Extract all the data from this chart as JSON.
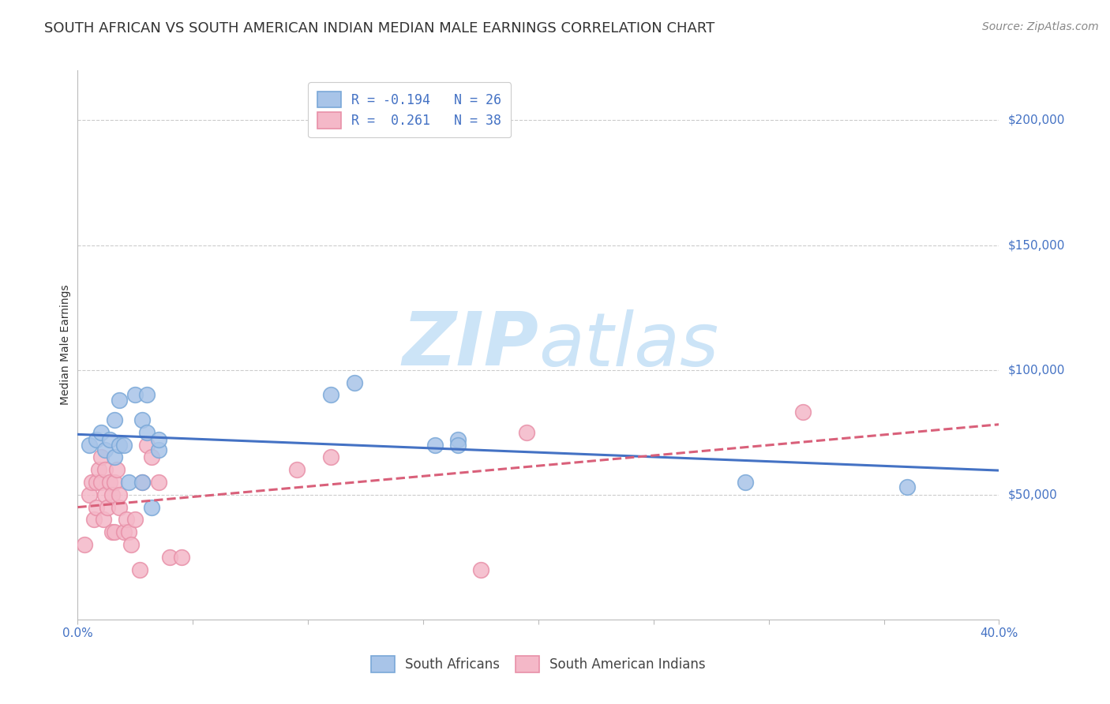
{
  "title": "SOUTH AFRICAN VS SOUTH AMERICAN INDIAN MEDIAN MALE EARNINGS CORRELATION CHART",
  "source": "Source: ZipAtlas.com",
  "ylabel": "Median Male Earnings",
  "ytick_labels": [
    "$50,000",
    "$100,000",
    "$150,000",
    "$200,000"
  ],
  "ytick_values": [
    50000,
    100000,
    150000,
    200000
  ],
  "ymin": 0,
  "ymax": 220000,
  "xmin": 0.0,
  "xmax": 0.4,
  "blue_label": "South Africans",
  "pink_label": "South American Indians",
  "blue_R": -0.194,
  "blue_N": 26,
  "pink_R": 0.261,
  "pink_N": 38,
  "blue_scatter_x": [
    0.005,
    0.008,
    0.01,
    0.012,
    0.014,
    0.016,
    0.016,
    0.018,
    0.018,
    0.02,
    0.022,
    0.025,
    0.028,
    0.028,
    0.03,
    0.03,
    0.032,
    0.035,
    0.035,
    0.11,
    0.12,
    0.155,
    0.165,
    0.165,
    0.29,
    0.36
  ],
  "blue_scatter_y": [
    70000,
    72000,
    75000,
    68000,
    72000,
    80000,
    65000,
    88000,
    70000,
    70000,
    55000,
    90000,
    80000,
    55000,
    90000,
    75000,
    45000,
    68000,
    72000,
    90000,
    95000,
    70000,
    72000,
    70000,
    55000,
    53000
  ],
  "pink_scatter_x": [
    0.003,
    0.005,
    0.006,
    0.007,
    0.008,
    0.008,
    0.009,
    0.01,
    0.01,
    0.011,
    0.012,
    0.012,
    0.013,
    0.014,
    0.015,
    0.015,
    0.016,
    0.016,
    0.017,
    0.018,
    0.018,
    0.02,
    0.021,
    0.022,
    0.023,
    0.025,
    0.027,
    0.028,
    0.03,
    0.032,
    0.035,
    0.04,
    0.045,
    0.095,
    0.11,
    0.175,
    0.195,
    0.315
  ],
  "pink_scatter_y": [
    30000,
    50000,
    55000,
    40000,
    45000,
    55000,
    60000,
    55000,
    65000,
    40000,
    50000,
    60000,
    45000,
    55000,
    50000,
    35000,
    55000,
    35000,
    60000,
    45000,
    50000,
    35000,
    40000,
    35000,
    30000,
    40000,
    20000,
    55000,
    70000,
    65000,
    55000,
    25000,
    25000,
    60000,
    65000,
    20000,
    75000,
    83000
  ],
  "blue_line_color": "#4472c4",
  "pink_line_color": "#d9607a",
  "blue_scatter_facecolor": "#a8c4e8",
  "pink_scatter_facecolor": "#f4b8c8",
  "blue_scatter_edge": "#7aa8d8",
  "pink_scatter_edge": "#e890a8",
  "watermark_zip": "ZIP",
  "watermark_atlas": "atlas",
  "watermark_color": "#cce4f7",
  "background_color": "#ffffff",
  "grid_color": "#cccccc",
  "title_fontsize": 13,
  "axis_label_fontsize": 10,
  "tick_fontsize": 11,
  "legend_fontsize": 12,
  "source_fontsize": 10,
  "xtick_minor_count": 9
}
